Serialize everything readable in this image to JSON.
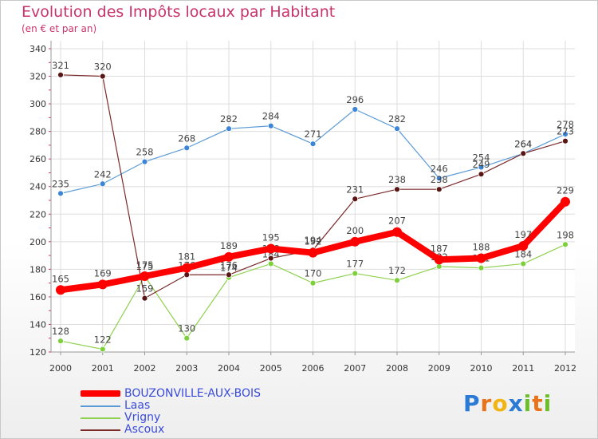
{
  "header": {
    "title": "Evolution des Impôts locaux par Habitant",
    "subtitle": "(en € et par an)"
  },
  "brand": {
    "name": "Proxiti",
    "letters": [
      "P",
      "r",
      "o",
      "x",
      "i",
      "t",
      "i"
    ],
    "colors": [
      "#2b7bd6",
      "#e8731a",
      "#f0b514",
      "#2b7bd6",
      "#6cbf2a",
      "#e8731a",
      "#6cbf2a"
    ]
  },
  "chart_data": {
    "type": "line",
    "title": "Evolution des Impôts locaux par Habitant",
    "subtitle": "(en € et par an)",
    "xlabel": "",
    "ylabel": "",
    "x": [
      "2000",
      "2001",
      "2002",
      "2003",
      "2004",
      "2005",
      "2006",
      "2007",
      "2008",
      "2009",
      "2010",
      "2011",
      "2012"
    ],
    "ylim": [
      120,
      340
    ],
    "yticks": [
      120,
      140,
      160,
      180,
      200,
      220,
      240,
      260,
      280,
      300,
      320,
      340
    ],
    "grid": true,
    "legend_position": "bottom-left",
    "series": [
      {
        "name": "BOUZONVILLE-AUX-BOIS",
        "color": "#ff0000",
        "values": [
          165,
          169,
          175,
          181,
          189,
          195,
          192,
          200,
          207,
          187,
          188,
          197,
          229
        ]
      },
      {
        "name": "Laas",
        "color": "#5b9bd5",
        "values": [
          235,
          242,
          258,
          268,
          282,
          284,
          271,
          296,
          282,
          246,
          254,
          264,
          278
        ]
      },
      {
        "name": "Vrigny",
        "color": "#8fd14f",
        "values": [
          128,
          122,
          175,
          130,
          174,
          184,
          170,
          177,
          172,
          182,
          181,
          184,
          198
        ]
      },
      {
        "name": "Ascoux",
        "color": "#7b2a2a",
        "values": [
          321,
          320,
          159,
          176,
          176,
          188,
          194,
          231,
          238,
          238,
          249,
          264,
          273
        ]
      }
    ]
  }
}
